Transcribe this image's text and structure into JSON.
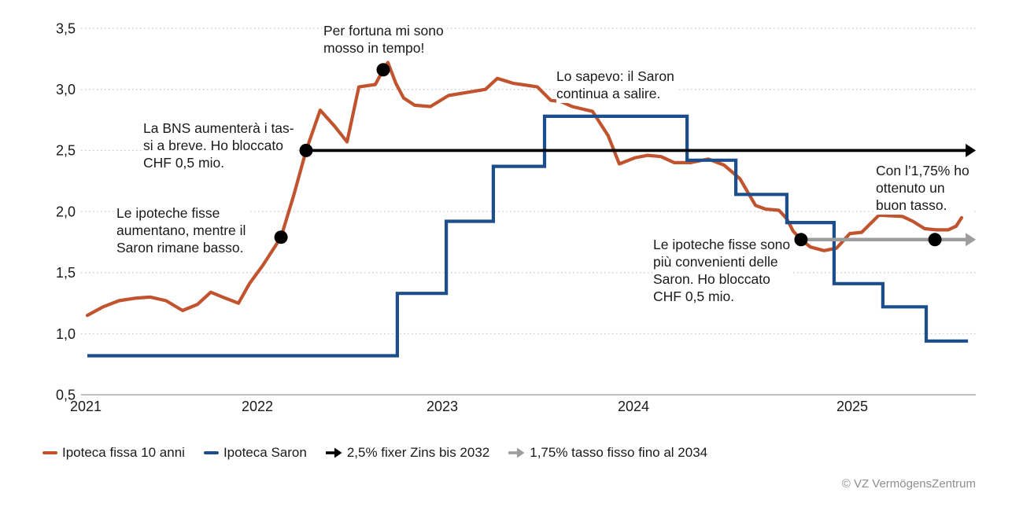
{
  "chart_data": {
    "type": "line",
    "title": "",
    "x_axis": {
      "ticks": [
        {
          "label": "2021",
          "t": 2021
        },
        {
          "label": "2022",
          "t": 2022
        },
        {
          "label": "2023",
          "t": 2023
        },
        {
          "label": "2024",
          "t": 2024
        },
        {
          "label": "2025",
          "t": 2025
        }
      ],
      "range": [
        2020.97,
        2025.57
      ]
    },
    "y_axis": {
      "ticks": [
        {
          "label": "3,5",
          "v": 3.5
        },
        {
          "label": "3,0",
          "v": 3.0
        },
        {
          "label": "2,5",
          "v": 2.5
        },
        {
          "label": "2,0",
          "v": 2.0
        },
        {
          "label": "1,5",
          "v": 1.5
        },
        {
          "label": "1,0",
          "v": 1.0
        },
        {
          "label": "0,5",
          "v": 0.5
        }
      ],
      "range": [
        0.5,
        3.55
      ],
      "grid": "dotted"
    },
    "series": [
      {
        "name": "Ipoteca fissa 10 anni",
        "color": "#c1542e",
        "style": "line",
        "points": [
          [
            2021.009,
            1.15
          ],
          [
            2021.101,
            1.22
          ],
          [
            2021.193,
            1.27
          ],
          [
            2021.284,
            1.29
          ],
          [
            2021.376,
            1.3
          ],
          [
            2021.468,
            1.27
          ],
          [
            2021.564,
            1.19
          ],
          [
            2021.651,
            1.24
          ],
          [
            2021.729,
            1.34
          ],
          [
            2021.798,
            1.3
          ],
          [
            2021.89,
            1.25
          ],
          [
            2021.954,
            1.41
          ],
          [
            2022.03,
            1.56
          ],
          [
            2022.128,
            1.79
          ],
          [
            2022.196,
            2.13
          ],
          [
            2022.264,
            2.5
          ],
          [
            2022.34,
            2.83
          ],
          [
            2022.417,
            2.7
          ],
          [
            2022.485,
            2.57
          ],
          [
            2022.549,
            3.02
          ],
          [
            2022.638,
            3.04
          ],
          [
            2022.681,
            3.16
          ],
          [
            2022.706,
            3.22
          ],
          [
            2022.749,
            3.05
          ],
          [
            2022.791,
            2.93
          ],
          [
            2022.851,
            2.87
          ],
          [
            2022.936,
            2.86
          ],
          [
            2023.033,
            2.95
          ],
          [
            2023.148,
            2.98
          ],
          [
            2023.226,
            3.0
          ],
          [
            2023.288,
            3.09
          ],
          [
            2023.37,
            3.05
          ],
          [
            2023.457,
            3.03
          ],
          [
            2023.498,
            3.02
          ],
          [
            2023.568,
            2.91
          ],
          [
            2023.621,
            2.9
          ],
          [
            2023.679,
            2.86
          ],
          [
            2023.786,
            2.82
          ],
          [
            2023.868,
            2.62
          ],
          [
            2023.926,
            2.39
          ],
          [
            2024.007,
            2.44
          ],
          [
            2024.065,
            2.46
          ],
          [
            2024.126,
            2.45
          ],
          [
            2024.187,
            2.4
          ],
          [
            2024.259,
            2.4
          ],
          [
            2024.342,
            2.43
          ],
          [
            2024.414,
            2.38
          ],
          [
            2024.486,
            2.27
          ],
          [
            2024.558,
            2.05
          ],
          [
            2024.604,
            2.02
          ],
          [
            2024.665,
            2.01
          ],
          [
            2024.701,
            1.94
          ],
          [
            2024.73,
            1.84
          ],
          [
            2024.766,
            1.77
          ],
          [
            2024.809,
            1.71
          ],
          [
            2024.871,
            1.68
          ],
          [
            2024.928,
            1.7
          ],
          [
            2024.989,
            1.82
          ],
          [
            2025.043,
            1.83
          ],
          [
            2025.122,
            1.97
          ],
          [
            2025.23,
            1.96
          ],
          [
            2025.277,
            1.92
          ],
          [
            2025.331,
            1.86
          ],
          [
            2025.385,
            1.85
          ],
          [
            2025.439,
            1.85
          ],
          [
            2025.475,
            1.88
          ],
          [
            2025.5,
            1.95
          ]
        ]
      },
      {
        "name": "Ipoteca Saron",
        "color": "#1d4e8c",
        "style": "step",
        "points": [
          [
            2021.009,
            0.82
          ],
          [
            2022.757,
            0.82
          ],
          [
            2022.757,
            1.33
          ],
          [
            2023.021,
            1.33
          ],
          [
            2023.021,
            1.92
          ],
          [
            2023.267,
            1.92
          ],
          [
            2023.267,
            2.37
          ],
          [
            2023.535,
            2.37
          ],
          [
            2023.535,
            2.78
          ],
          [
            2024.245,
            2.78
          ],
          [
            2024.245,
            2.42
          ],
          [
            2024.468,
            2.42
          ],
          [
            2024.468,
            2.14
          ],
          [
            2024.701,
            2.14
          ],
          [
            2024.701,
            1.91
          ],
          [
            2024.917,
            1.91
          ],
          [
            2024.917,
            1.41
          ],
          [
            2025.14,
            1.41
          ],
          [
            2025.14,
            1.22
          ],
          [
            2025.338,
            1.22
          ],
          [
            2025.338,
            0.94
          ],
          [
            2025.529,
            0.94
          ]
        ]
      }
    ],
    "arrows": [
      {
        "name": "2,5% fixer Zins bis 2032",
        "color": "#000000",
        "v": 2.5,
        "t_start": 2022.264,
        "t_end": 2025.522
      },
      {
        "name": "1,75% tasso fisso fino al 2034",
        "color": "#9d9d9d",
        "v": 1.77,
        "t_start": 2024.766,
        "t_end": 2025.522
      }
    ],
    "markers": [
      {
        "name": "fixed-rates-rising",
        "t": 2022.128,
        "v": 1.79
      },
      {
        "name": "locked-2-5-percent",
        "t": 2022.264,
        "v": 2.5
      },
      {
        "name": "moved-in-time",
        "t": 2022.681,
        "v": 3.16
      },
      {
        "name": "locked-1-75-percent",
        "t": 2024.766,
        "v": 1.77
      },
      {
        "name": "good-rate-2034",
        "t": 2025.378,
        "v": 1.77
      }
    ],
    "annotations": [
      {
        "id": "per-fortuna",
        "t": 2022.357,
        "v": 3.551,
        "lines": [
          "Per fortuna mi sono",
          "mosso in tempo!"
        ]
      },
      {
        "id": "bns-lock",
        "t": 2021.335,
        "v": 2.754,
        "lines": [
          "La BNS aumenterà i tas-",
          "si a breve. Ho bloccato",
          "CHF 0,5 mio."
        ]
      },
      {
        "id": "fisse-aumentano",
        "t": 2021.179,
        "v": 2.058,
        "lines": [
          "Le ipoteche fisse",
          "aumentano, mentre il",
          "Saron rimane basso."
        ]
      },
      {
        "id": "lo-sapevo",
        "t": 2023.597,
        "v": 3.178,
        "lines": [
          "Lo sapevo: il Saron",
          "continua a salire."
        ]
      },
      {
        "id": "buon-tasso",
        "t": 2025.108,
        "v": 2.406,
        "lines": [
          "Con l’1,75% ho",
          "ottenuto un",
          "buon tasso."
        ]
      },
      {
        "id": "fisse-convenienti",
        "t": 2024.09,
        "v": 1.801,
        "lines": [
          "Le ipoteche fisse sono",
          "più convenienti delle",
          "Saron. Ho bloccato",
          "CHF 0,5 mio."
        ]
      }
    ],
    "colors": {
      "grid": "#cbcbcb",
      "axis": "#a0a0a0",
      "text": "#1a1a1a",
      "marker": "#000000"
    }
  },
  "legend": {
    "items": [
      {
        "label": "Ipoteca fissa 10 anni",
        "swatch": "dash",
        "color": "#c1542e"
      },
      {
        "label": "Ipoteca Saron",
        "swatch": "dash",
        "color": "#1d4e8c"
      },
      {
        "label": "2,5% fixer Zins bis 2032",
        "swatch": "arrow",
        "color": "#000000"
      },
      {
        "label": "1,75% tasso fisso fino al 2034",
        "swatch": "arrow",
        "color": "#9d9d9d"
      }
    ]
  },
  "footer": {
    "copyright": "© VZ VermögensZentrum"
  }
}
